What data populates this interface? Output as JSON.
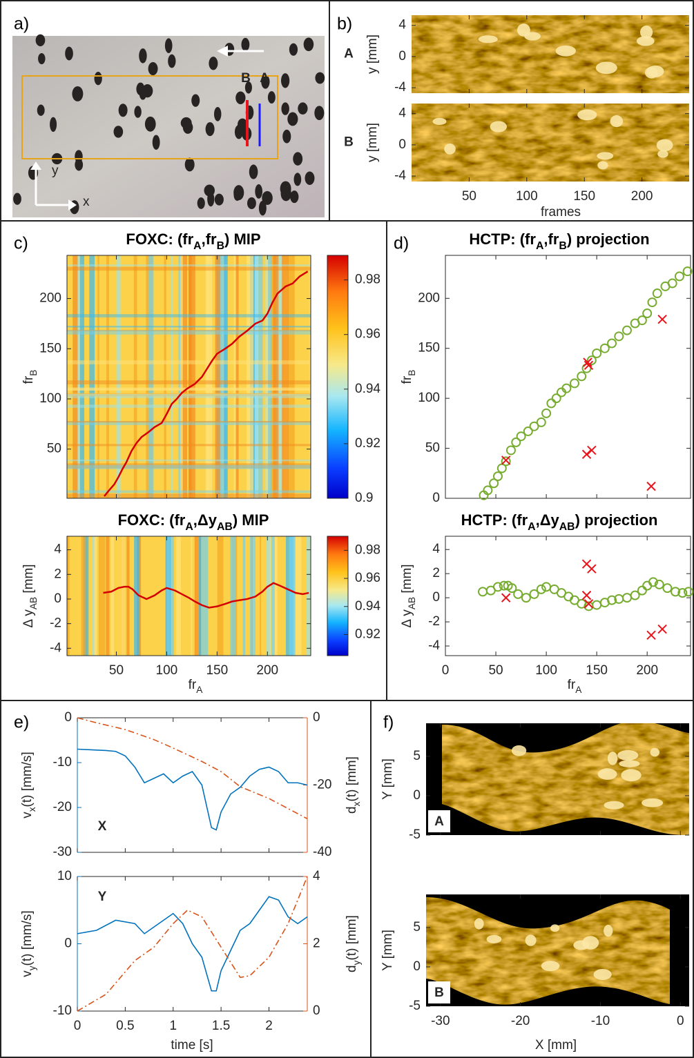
{
  "chart_data": [
    {
      "type": "photo",
      "label": "a)",
      "markers": [
        "B",
        "A"
      ],
      "marker_colors": [
        "#e8141b",
        "#1a1aff"
      ],
      "axes": [
        "y",
        "x"
      ]
    },
    {
      "type": "strips",
      "label": "b)",
      "rows": [
        "A",
        "B"
      ],
      "row_colors": [
        "#1a1aff",
        "#e8141b"
      ],
      "xlabel": "frames",
      "ylabel": "y [mm]",
      "xlim": [
        0,
        241
      ],
      "xticks": [
        50,
        100,
        150,
        200
      ],
      "ylim": [
        -4.7,
        5.3
      ],
      "yticks": [
        -4,
        0,
        4
      ]
    },
    {
      "type": "heatmap",
      "label": "c)",
      "colormap": "jet",
      "plots": [
        {
          "title": [
            "FOXC:  (fr",
            "A",
            ",fr",
            "B",
            ") MIP"
          ],
          "ylabel": [
            "fr",
            "B"
          ],
          "xlim": [
            1,
            243
          ],
          "xticks": [
            50,
            100,
            150,
            200
          ],
          "xticklabels": false,
          "ylim": [
            1,
            243
          ],
          "yticks": [
            50,
            100,
            150,
            200
          ],
          "clim": [
            0.9,
            0.989
          ],
          "cticks": [
            0.9,
            0.92,
            0.94,
            0.96,
            0.98
          ]
        },
        {
          "title": [
            "FOXC:  (fr",
            "A",
            ",Δy",
            "AB",
            ") MIP"
          ],
          "ylabel": [
            "Δ y",
            "AB",
            " [mm]"
          ],
          "xlabel": [
            "fr",
            "A"
          ],
          "xlim": [
            1,
            243
          ],
          "xticks": [
            50,
            100,
            150,
            200
          ],
          "xticklabels": true,
          "ylim": [
            -4.6,
            5.1
          ],
          "yticks": [
            -4,
            -2,
            0,
            2,
            4
          ],
          "clim": [
            0.905,
            0.99
          ],
          "cticks": [
            0.92,
            0.94,
            0.96,
            0.98
          ]
        }
      ]
    },
    {
      "type": "scatter",
      "label": "d)",
      "plots": [
        {
          "title": [
            "HCTP: (fr",
            "A",
            ",fr",
            "B",
            ") projection"
          ],
          "ylabel": [
            "fr",
            "B"
          ],
          "xlim": [
            0,
            243
          ],
          "xticks": [
            0,
            50,
            100,
            150,
            200
          ],
          "xticklabels": false,
          "ylim": [
            0,
            243
          ],
          "yticks": [
            0,
            50,
            100,
            150,
            200
          ],
          "series": [
            {
              "color": "#77ac30",
              "marker": "circle",
              "x": [
                38,
                42,
                48,
                52,
                56,
                60,
                65,
                70,
                75,
                82,
                88,
                95,
                100,
                105,
                110,
                115,
                120,
                128,
                135,
                140,
                145,
                150,
                158,
                165,
                172,
                180,
                188,
                195,
                200,
                205,
                210,
                218,
                225,
                232,
                240
              ],
              "values": [
                3,
                8,
                15,
                22,
                30,
                37,
                48,
                56,
                62,
                67,
                72,
                76,
                85,
                95,
                100,
                106,
                110,
                115,
                122,
                130,
                138,
                145,
                150,
                155,
                162,
                168,
                175,
                178,
                185,
                196,
                205,
                212,
                215,
                222,
                227
              ]
            },
            {
              "color": "#e8141b",
              "marker": "cross",
              "x": [
                60,
                141,
                142,
                140,
                145,
                204,
                215
              ],
              "values": [
                38,
                136,
                133,
                44,
                48,
                12,
                179
              ]
            }
          ]
        },
        {
          "title": [
            "HCTP:  (fr",
            "A",
            ",Δy",
            "AB",
            ") projection"
          ],
          "ylabel": [
            "Δ y",
            "AB",
            " [mm]"
          ],
          "xlabel": [
            "fr",
            "A"
          ],
          "xlim": [
            0,
            243
          ],
          "xticks": [
            0,
            50,
            100,
            150,
            200
          ],
          "xticklabels": true,
          "ylim": [
            -4.8,
            5.1
          ],
          "yticks": [
            -4,
            -2,
            0,
            2,
            4
          ],
          "series": [
            {
              "color": "#77ac30",
              "marker": "circle",
              "x": [
                37,
                45,
                52,
                58,
                62,
                66,
                72,
                80,
                88,
                95,
                100,
                108,
                115,
                122,
                128,
                135,
                142,
                150,
                158,
                165,
                172,
                180,
                188,
                195,
                200,
                206,
                212,
                220,
                228,
                235,
                241
              ],
              "values": [
                0.5,
                0.6,
                0.9,
                1,
                1,
                0.8,
                0.3,
                0,
                0.3,
                0.7,
                0.9,
                0.7,
                0.4,
                0.1,
                -0.2,
                -0.5,
                -0.7,
                -0.6,
                -0.4,
                -0.2,
                -0.1,
                0,
                0.2,
                0.6,
                1,
                1.3,
                1.1,
                0.8,
                0.5,
                0.4,
                0.5
              ]
            },
            {
              "color": "#e8141b",
              "marker": "cross",
              "x": [
                60,
                140,
                145,
                140,
                142,
                204,
                215
              ],
              "values": [
                0,
                2.8,
                2.4,
                0.2,
                -0.5,
                -3.1,
                -2.6
              ]
            }
          ]
        }
      ]
    },
    {
      "type": "line",
      "label": "e)",
      "xlabel": "time [s]",
      "xlim": [
        0,
        2.4
      ],
      "xticks": [
        0,
        0.5,
        1,
        1.5,
        2
      ],
      "plots": [
        {
          "tag": "X",
          "ylabel": [
            "v",
            "x",
            "(t) [mm/s]"
          ],
          "y2label": [
            "d",
            "x",
            "(t) [mm]"
          ],
          "ylim": [
            -30,
            0
          ],
          "yticks": [
            -30,
            -20,
            -10,
            0
          ],
          "y2lim": [
            -40,
            0
          ],
          "y2ticks": [
            -40,
            -20,
            0
          ],
          "xticklabels": false,
          "series": [
            {
              "color": "#0072bd",
              "style": "solid",
              "x": [
                0,
                0.1,
                0.2,
                0.3,
                0.4,
                0.5,
                0.6,
                0.7,
                0.8,
                0.9,
                1,
                1.1,
                1.2,
                1.3,
                1.4,
                1.45,
                1.5,
                1.6,
                1.7,
                1.8,
                1.9,
                2,
                2.1,
                2.2,
                2.3,
                2.4
              ],
              "values": [
                -7,
                -7.1,
                -7.2,
                -7.3,
                -7.5,
                -8.5,
                -11,
                -14.5,
                -13.5,
                -12.5,
                -14.5,
                -13,
                -12,
                -15,
                -24.5,
                -25,
                -21,
                -17,
                -15.5,
                -13,
                -11.5,
                -11,
                -12,
                -14.5,
                -14.5,
                -15
              ]
            },
            {
              "color": "#d95319",
              "style": "dashdot",
              "axis": "y2",
              "x": [
                0,
                0.2,
                0.5,
                0.8,
                1,
                1.3,
                1.5,
                1.7,
                2,
                2.4
              ],
              "values": [
                0,
                -1.5,
                -3.5,
                -6.5,
                -9,
                -13,
                -16,
                -20.5,
                -24,
                -30
              ]
            }
          ]
        },
        {
          "tag": "Y",
          "ylabel": [
            "v",
            "y",
            "(t) [mm/s]"
          ],
          "y2label": [
            "d",
            "y",
            "(t) [mm]"
          ],
          "ylim": [
            -10,
            10
          ],
          "yticks": [
            -10,
            0,
            10
          ],
          "y2lim": [
            0,
            4
          ],
          "y2ticks": [
            0,
            2,
            4
          ],
          "xticklabels": true,
          "series": [
            {
              "color": "#0072bd",
              "style": "solid",
              "x": [
                0,
                0.2,
                0.4,
                0.6,
                0.7,
                0.8,
                1,
                1.1,
                1.2,
                1.3,
                1.4,
                1.45,
                1.5,
                1.6,
                1.7,
                1.8,
                1.9,
                2,
                2.1,
                2.2,
                2.3,
                2.4
              ],
              "values": [
                1.5,
                2,
                3.5,
                3,
                1.5,
                2.5,
                4.5,
                3,
                0,
                -2,
                -7,
                -7,
                -4,
                -1,
                2,
                3,
                5,
                7,
                6.5,
                4,
                3,
                4
              ]
            },
            {
              "color": "#d95319",
              "style": "dashdot",
              "axis": "y2",
              "x": [
                0,
                0.3,
                0.6,
                0.8,
                1,
                1.15,
                1.3,
                1.5,
                1.7,
                1.8,
                2,
                2.2,
                2.4
              ],
              "values": [
                0,
                0.5,
                1.5,
                1.9,
                2.6,
                3,
                2.8,
                1.9,
                1,
                1.05,
                1.6,
                2.6,
                4
              ]
            }
          ]
        }
      ]
    },
    {
      "type": "map",
      "label": "f)",
      "xlabel": "X [mm]",
      "ylabel": "Y [mm]",
      "xlim": [
        -31.8,
        1.1
      ],
      "xticks": [
        -30,
        -20,
        -10,
        0
      ],
      "ylim": [
        -5,
        9.2
      ],
      "yticks": [
        -5,
        0,
        5
      ],
      "insets": [
        "A",
        "B"
      ],
      "inset_colors": [
        "#1a1aff",
        "#e8141b"
      ]
    }
  ]
}
